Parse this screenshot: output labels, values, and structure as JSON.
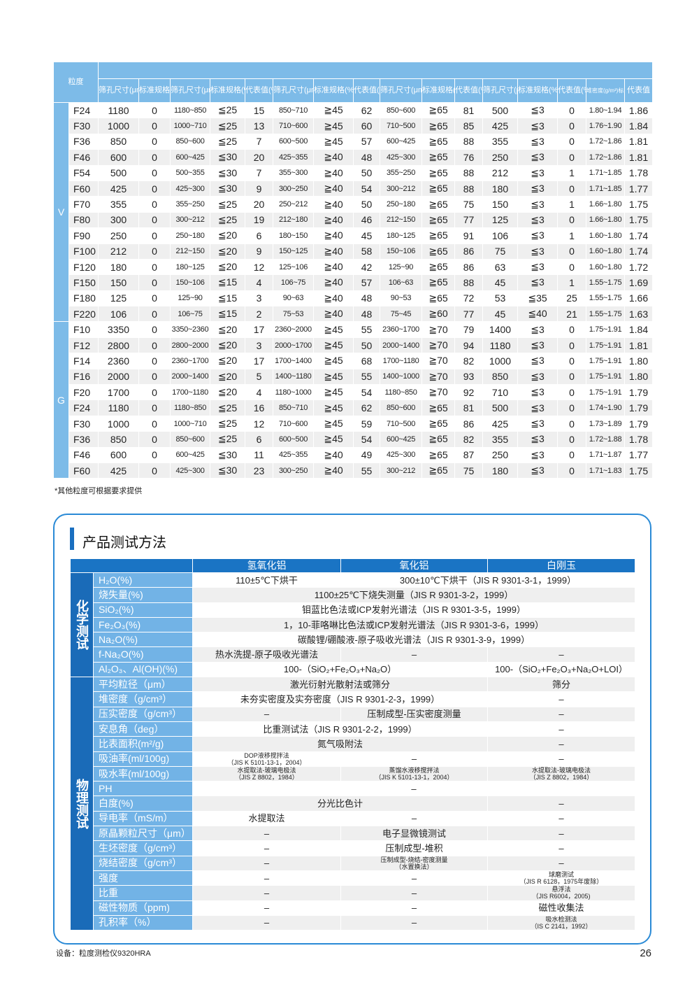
{
  "size_table": {
    "header_label": "粒度",
    "columns": [
      "筛孔尺寸(μm)",
      "标准规格(%)筛上",
      "筛孔尺寸(μm)",
      "标准规格(%)",
      "代表值(%)",
      "筛孔尺寸(μm)",
      "标准规格(%)",
      "代表值(%)",
      "筛孔尺寸(μm)",
      "标准规格(%)",
      "代表值(%)",
      "筛孔尺寸(μm)",
      "标准规格(%)",
      "代表值(%)",
      "堆密度(g/m³)标准规格",
      "代表值"
    ],
    "groups": [
      {
        "name": "V",
        "rows": [
          [
            "F24",
            "1180",
            "0",
            "1180~850",
            "≦25",
            "15",
            "850~710",
            "≧45",
            "62",
            "850~600",
            "≧65",
            "81",
            "500",
            "≦3",
            "0",
            "1.80~1.94",
            "1.86"
          ],
          [
            "F30",
            "1000",
            "0",
            "1000~710",
            "≦25",
            "13",
            "710~600",
            "≧45",
            "60",
            "710~500",
            "≧65",
            "85",
            "425",
            "≦3",
            "0",
            "1.76~1.90",
            "1.84"
          ],
          [
            "F36",
            "850",
            "0",
            "850~600",
            "≦25",
            "7",
            "600~500",
            "≧45",
            "57",
            "600~425",
            "≧65",
            "88",
            "355",
            "≦3",
            "0",
            "1.72~1.86",
            "1.81"
          ],
          [
            "F46",
            "600",
            "0",
            "600~425",
            "≦30",
            "20",
            "425~355",
            "≧40",
            "48",
            "425~300",
            "≧65",
            "76",
            "250",
            "≦3",
            "0",
            "1.72~1.86",
            "1.81"
          ],
          [
            "F54",
            "500",
            "0",
            "500~355",
            "≦30",
            "7",
            "355~300",
            "≧40",
            "50",
            "355~250",
            "≧65",
            "88",
            "212",
            "≦3",
            "1",
            "1.71~1.85",
            "1.78"
          ],
          [
            "F60",
            "425",
            "0",
            "425~300",
            "≦30",
            "9",
            "300~250",
            "≧40",
            "54",
            "300~212",
            "≧65",
            "88",
            "180",
            "≦3",
            "0",
            "1.71~1.85",
            "1.77"
          ],
          [
            "F70",
            "355",
            "0",
            "355~250",
            "≦25",
            "20",
            "250~212",
            "≧40",
            "50",
            "250~180",
            "≧65",
            "75",
            "150",
            "≦3",
            "1",
            "1.66~1.80",
            "1.75"
          ],
          [
            "F80",
            "300",
            "0",
            "300~212",
            "≦25",
            "19",
            "212~180",
            "≧40",
            "46",
            "212~150",
            "≧65",
            "77",
            "125",
            "≦3",
            "0",
            "1.66~1.80",
            "1.75"
          ],
          [
            "F90",
            "250",
            "0",
            "250~180",
            "≦20",
            "6",
            "180~150",
            "≧40",
            "45",
            "180~125",
            "≧65",
            "91",
            "106",
            "≦3",
            "1",
            "1.60~1.80",
            "1.74"
          ],
          [
            "F100",
            "212",
            "0",
            "212~150",
            "≦20",
            "9",
            "150~125",
            "≧40",
            "58",
            "150~106",
            "≧65",
            "86",
            "75",
            "≦3",
            "0",
            "1.60~1.80",
            "1.74"
          ],
          [
            "F120",
            "180",
            "0",
            "180~125",
            "≦20",
            "12",
            "125~106",
            "≧40",
            "42",
            "125~90",
            "≧65",
            "86",
            "63",
            "≦3",
            "0",
            "1.60~1.80",
            "1.72"
          ],
          [
            "F150",
            "150",
            "0",
            "150~106",
            "≦15",
            "4",
            "106~75",
            "≧40",
            "57",
            "106~63",
            "≧65",
            "88",
            "45",
            "≦3",
            "1",
            "1.55~1.75",
            "1.69"
          ],
          [
            "F180",
            "125",
            "0",
            "125~90",
            "≦15",
            "3",
            "90~63",
            "≧40",
            "48",
            "90~53",
            "≧65",
            "72",
            "53",
            "≦35",
            "25",
            "1.55~1.75",
            "1.66"
          ],
          [
            "F220",
            "106",
            "0",
            "106~75",
            "≦15",
            "2",
            "75~53",
            "≧40",
            "48",
            "75~45",
            "≧60",
            "77",
            "45",
            "≦40",
            "21",
            "1.55~1.75",
            "1.63"
          ]
        ]
      },
      {
        "name": "G",
        "rows": [
          [
            "F10",
            "3350",
            "0",
            "3350~2360",
            "≦20",
            "17",
            "2360~2000",
            "≧45",
            "55",
            "2360~1700",
            "≧70",
            "79",
            "1400",
            "≦3",
            "0",
            "1.75~1.91",
            "1.84"
          ],
          [
            "F12",
            "2800",
            "0",
            "2800~2000",
            "≦20",
            "3",
            "2000~1700",
            "≧45",
            "50",
            "2000~1400",
            "≧70",
            "94",
            "1180",
            "≦3",
            "0",
            "1.75~1.91",
            "1.81"
          ],
          [
            "F14",
            "2360",
            "0",
            "2360~1700",
            "≦20",
            "17",
            "1700~1400",
            "≧45",
            "68",
            "1700~1180",
            "≧70",
            "82",
            "1000",
            "≦3",
            "0",
            "1.75~1.91",
            "1.80"
          ],
          [
            "F16",
            "2000",
            "0",
            "2000~1400",
            "≦20",
            "5",
            "1400~1180",
            "≧45",
            "55",
            "1400~1000",
            "≧70",
            "93",
            "850",
            "≦3",
            "0",
            "1.75~1.91",
            "1.80"
          ],
          [
            "F20",
            "1700",
            "0",
            "1700~1180",
            "≦20",
            "4",
            "1180~1000",
            "≧45",
            "54",
            "1180~850",
            "≧70",
            "92",
            "710",
            "≦3",
            "0",
            "1.75~1.91",
            "1.79"
          ],
          [
            "F24",
            "1180",
            "0",
            "1180~850",
            "≦25",
            "16",
            "850~710",
            "≧45",
            "62",
            "850~600",
            "≧65",
            "81",
            "500",
            "≦3",
            "0",
            "1.74~1.90",
            "1.79"
          ],
          [
            "F30",
            "1000",
            "0",
            "1000~710",
            "≦25",
            "12",
            "710~600",
            "≧45",
            "59",
            "710~500",
            "≧65",
            "86",
            "425",
            "≦3",
            "0",
            "1.73~1.89",
            "1.79"
          ],
          [
            "F36",
            "850",
            "0",
            "850~600",
            "≦25",
            "6",
            "600~500",
            "≧45",
            "54",
            "600~425",
            "≧65",
            "82",
            "355",
            "≦3",
            "0",
            "1.72~1.88",
            "1.78"
          ],
          [
            "F46",
            "600",
            "0",
            "600~425",
            "≦30",
            "11",
            "425~355",
            "≧40",
            "49",
            "425~300",
            "≧65",
            "87",
            "250",
            "≦3",
            "0",
            "1.71~1.87",
            "1.77"
          ],
          [
            "F60",
            "425",
            "0",
            "425~300",
            "≦30",
            "23",
            "300~250",
            "≧40",
            "55",
            "300~212",
            "≧65",
            "75",
            "180",
            "≦3",
            "0",
            "1.71~1.83",
            "1.75"
          ]
        ]
      }
    ],
    "note": "*其他粒度可根据要求提供"
  },
  "test_methods": {
    "title": "产品测试方法",
    "headers": [
      "氢氧化铝",
      "氧化铝",
      "白刚玉"
    ],
    "categories": [
      {
        "name": "化学测试",
        "rows": [
          {
            "label": "H₂O(%)",
            "cells": [
              {
                "t": "110±5℃下烘干"
              },
              {
                "t": "300±10℃下烘干（JIS R 9301-3-1，1999）",
                "span": 2
              }
            ]
          },
          {
            "label": "烧失量(%)",
            "cells": [
              {
                "t": "1100±25℃下烧失测量（JIS R 9301-3-2，1999）",
                "span": 3
              }
            ]
          },
          {
            "label": "SiO₂(%)",
            "cells": [
              {
                "t": "钼蓝比色法或ICP发射光谱法（JIS R 9301-3-5，1999）",
                "span": 3
              }
            ]
          },
          {
            "label": "Fe₂O₃(%)",
            "cells": [
              {
                "t": "1，10-菲咯啉比色法或ICP发射光谱法（JIS R 9301-3-6，1999）",
                "span": 3
              }
            ]
          },
          {
            "label": "Na₂O(%)",
            "cells": [
              {
                "t": "碳酸锂/硼酸液-原子吸收光谱法（JIS R 9301-3-9，1999）",
                "span": 3
              }
            ]
          },
          {
            "label": "f-Na₂O(%)",
            "cells": [
              {
                "t": "热水洗提-原子吸收光谱法"
              },
              {
                "t": "–"
              },
              {
                "t": "–"
              }
            ]
          },
          {
            "label": "Al₂O₃、Al(OH)(%)",
            "cells": [
              {
                "t": "100-（SiO₂+Fe₂O₃+Na₂O）",
                "span": 2
              },
              {
                "t": "100-（SiO₂+Fe₂O₃+Na₂O+LOI）"
              }
            ]
          }
        ]
      },
      {
        "name": "物理测试",
        "rows": [
          {
            "label": "平均粒径（μm）",
            "cells": [
              {
                "t": "激光衍射光散射法或筛分",
                "span": 2
              },
              {
                "t": "筛分"
              }
            ]
          },
          {
            "label": "堆密度（g/cm³）",
            "cells": [
              {
                "t": "未夯实密度及实夯密度（JIS R 9301-2-3，1999）",
                "span": 2
              },
              {
                "t": "–"
              }
            ]
          },
          {
            "label": "压实密度（g/cm³）",
            "cells": [
              {
                "t": "–"
              },
              {
                "t": "压制成型-压实密度测量"
              },
              {
                "t": "–"
              }
            ]
          },
          {
            "label": "安息角（deg）",
            "cells": [
              {
                "t": "比重测试法（JIS R 9301-2-2，1999）",
                "span": 2
              },
              {
                "t": "–"
              }
            ]
          },
          {
            "label": "比表面积(m²/g)",
            "cells": [
              {
                "t": "氮气吸附法",
                "span": 2
              },
              {
                "t": "–"
              }
            ]
          },
          {
            "label": "吸油率(ml/100g)",
            "cells": [
              {
                "t": "DOP液移搅拌法\n（JIS K 5101-13-1，2004）",
                "small": true
              },
              {
                "t": "–"
              },
              {
                "t": "–"
              }
            ]
          },
          {
            "label": "吸水率(ml/100g)",
            "cells": [
              {
                "t": "水提取法-玻璃电极法\n（JIS Z 8802，1984）",
                "small": true
              },
              {
                "t": "蒸馏水液移搅拌法\n（JIS K 5101-13-1，2004）",
                "small": true
              },
              {
                "t": "水提取法-玻璃电极法\n（JIS Z 8802，1984）",
                "small": true
              }
            ]
          },
          {
            "label": "PH",
            "cells": [
              {
                "t": "–",
                "span": 3
              }
            ]
          },
          {
            "label": "白度(%)",
            "cells": [
              {
                "t": "分光比色计",
                "span": 2
              },
              {
                "t": "–"
              }
            ]
          },
          {
            "label": "导电率（mS/m）",
            "cells": [
              {
                "t": "水提取法"
              },
              {
                "t": "–"
              },
              {
                "t": "–"
              }
            ]
          },
          {
            "label": "原晶颗粒尺寸（μm）",
            "cells": [
              {
                "t": "–"
              },
              {
                "t": "电子显微镜测试"
              },
              {
                "t": "–"
              }
            ]
          },
          {
            "label": "生坯密度（g/cm³）",
            "cells": [
              {
                "t": "–"
              },
              {
                "t": "压制成型-堆积"
              },
              {
                "t": "–"
              }
            ]
          },
          {
            "label": "烧结密度（g/cm³）",
            "cells": [
              {
                "t": "–"
              },
              {
                "t": "压制成型-烧结-密度测量\n（水置换法）",
                "small": true
              },
              {
                "t": "–"
              }
            ]
          },
          {
            "label": "强度",
            "cells": [
              {
                "t": "–"
              },
              {
                "t": "–"
              },
              {
                "t": "球磨测试\n（JIS R 6128，1975年废除）",
                "small": true
              }
            ]
          },
          {
            "label": "比重",
            "cells": [
              {
                "t": "–"
              },
              {
                "t": "–"
              },
              {
                "t": "悬浮法\n（JIS R6004，2005)",
                "small": true
              }
            ]
          },
          {
            "label": "磁性物质（ppm)",
            "cells": [
              {
                "t": "–"
              },
              {
                "t": "–"
              },
              {
                "t": "磁性收集法"
              }
            ]
          },
          {
            "label": "孔积率（%）",
            "cells": [
              {
                "t": "–"
              },
              {
                "t": "–"
              },
              {
                "t": "吸水检测法\n（IS C 2141，1992）",
                "small": true
              }
            ]
          }
        ]
      }
    ]
  },
  "footer": {
    "equipment": "设备：粒度测检仪9320HRA",
    "page_number": "26"
  }
}
